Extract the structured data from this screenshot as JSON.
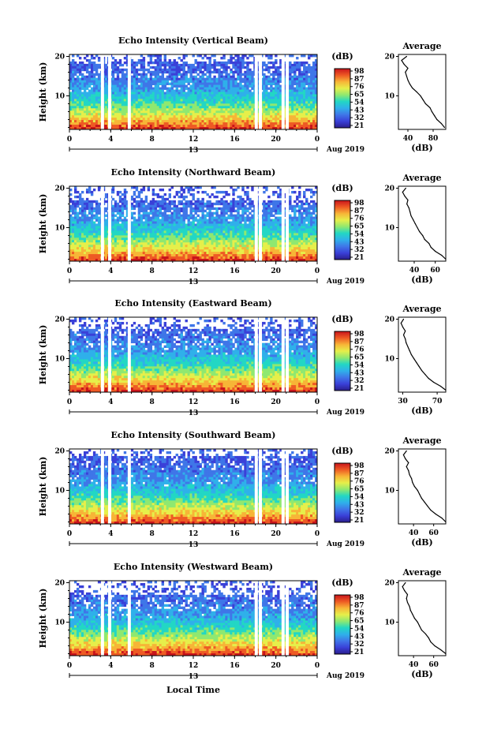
{
  "figure": {
    "xlabel": "Local Time",
    "date_label": "Aug 2019",
    "date_marker": "13",
    "ylabel": "Height (km)",
    "cbar_unit": "(dB)",
    "avg_title": "Average",
    "avg_unit": "(dB)",
    "colormap": [
      "#2a1e8c",
      "#3a40d8",
      "#3f76e8",
      "#2fb0ea",
      "#22d7c4",
      "#8fe870",
      "#e6ef4a",
      "#f7b537",
      "#ee5a24",
      "#c8141b"
    ]
  },
  "chart_data": [
    {
      "type": "heatmap",
      "title": "Echo Intensity (Vertical Beam)",
      "x_ticks": [
        "0",
        "4",
        "8",
        "12",
        "16",
        "20",
        "0"
      ],
      "xlim": [
        0,
        24
      ],
      "y_ticks": [
        "20",
        "10"
      ],
      "ylim": [
        1.5,
        20.5
      ],
      "colorbar_ticks": [
        "98",
        "87",
        "76",
        "65",
        "54",
        "43",
        "32",
        "21"
      ],
      "gaps_hours": [
        3.2,
        3.9,
        5.8,
        18.1,
        18.5,
        20.7,
        21.1
      ],
      "average_profile": {
        "x_ticks": [
          "40",
          "80"
        ],
        "xlim": [
          25,
          100
        ],
        "y_ticks": [
          "20",
          "10"
        ],
        "heights_km": [
          2,
          3,
          4,
          5,
          6,
          7,
          8,
          9,
          10,
          11,
          12,
          13,
          14,
          15,
          16,
          17,
          18,
          19,
          20
        ],
        "values_db": [
          98,
          93,
          86,
          82,
          78,
          75,
          68,
          64,
          60,
          54,
          47,
          43,
          40,
          38,
          36,
          40,
          34,
          30,
          38
        ]
      }
    },
    {
      "type": "heatmap",
      "title": "Echo Intensity (Northward Beam)",
      "x_ticks": [
        "0",
        "4",
        "8",
        "12",
        "16",
        "20",
        "0"
      ],
      "xlim": [
        0,
        24
      ],
      "y_ticks": [
        "20",
        "10"
      ],
      "ylim": [
        1.5,
        20.5
      ],
      "colorbar_ticks": [
        "98",
        "87",
        "76",
        "65",
        "54",
        "43",
        "32",
        "21"
      ],
      "gaps_hours": [
        3.2,
        3.9,
        5.8,
        18.1,
        18.5,
        20.7,
        21.1
      ],
      "average_profile": {
        "x_ticks": [
          "40",
          "60"
        ],
        "xlim": [
          25,
          70
        ],
        "y_ticks": [
          "20",
          "10"
        ],
        "heights_km": [
          2,
          3,
          4,
          5,
          6,
          7,
          8,
          9,
          10,
          11,
          12,
          13,
          14,
          15,
          16,
          17,
          18,
          19,
          20
        ],
        "values_db": [
          70,
          66,
          60,
          56,
          54,
          50,
          48,
          45,
          43,
          41,
          39,
          37,
          36,
          35,
          33,
          34,
          31,
          29,
          32
        ]
      }
    },
    {
      "type": "heatmap",
      "title": "Echo Intensity (Eastward Beam)",
      "x_ticks": [
        "0",
        "4",
        "8",
        "12",
        "16",
        "20",
        "0"
      ],
      "xlim": [
        0,
        24
      ],
      "y_ticks": [
        "20",
        "10"
      ],
      "ylim": [
        1.5,
        20.5
      ],
      "colorbar_ticks": [
        "98",
        "87",
        "76",
        "65",
        "54",
        "43",
        "32",
        "21"
      ],
      "gaps_hours": [
        3.2,
        3.9,
        5.8,
        18.1,
        18.5,
        20.7,
        21.1
      ],
      "average_profile": {
        "x_ticks": [
          "30",
          "70"
        ],
        "xlim": [
          25,
          80
        ],
        "y_ticks": [
          "20",
          "10"
        ],
        "heights_km": [
          2,
          3,
          4,
          5,
          6,
          7,
          8,
          9,
          10,
          11,
          12,
          13,
          14,
          15,
          16,
          17,
          18,
          19,
          20
        ],
        "values_db": [
          80,
          74,
          66,
          60,
          56,
          52,
          49,
          46,
          43,
          40,
          38,
          36,
          34,
          33,
          31,
          33,
          30,
          28,
          31
        ]
      }
    },
    {
      "type": "heatmap",
      "title": "Echo Intensity (Southward Beam)",
      "x_ticks": [
        "0",
        "4",
        "8",
        "12",
        "16",
        "20",
        "0"
      ],
      "xlim": [
        0,
        24
      ],
      "y_ticks": [
        "20",
        "10"
      ],
      "ylim": [
        1.5,
        20.5
      ],
      "colorbar_ticks": [
        "98",
        "87",
        "76",
        "65",
        "54",
        "43",
        "32",
        "21"
      ],
      "gaps_hours": [
        3.2,
        3.9,
        5.8,
        18.1,
        18.5,
        20.7,
        21.1
      ],
      "average_profile": {
        "x_ticks": [
          "40",
          "60"
        ],
        "xlim": [
          25,
          72
        ],
        "y_ticks": [
          "20",
          "10"
        ],
        "heights_km": [
          2,
          3,
          4,
          5,
          6,
          7,
          8,
          9,
          10,
          11,
          12,
          13,
          14,
          15,
          16,
          17,
          18,
          19,
          20
        ],
        "values_db": [
          72,
          68,
          62,
          57,
          54,
          51,
          48,
          46,
          44,
          41,
          39,
          38,
          36,
          35,
          33,
          35,
          32,
          30,
          33
        ]
      }
    },
    {
      "type": "heatmap",
      "title": "Echo Intensity (Westward Beam)",
      "x_ticks": [
        "0",
        "4",
        "8",
        "12",
        "16",
        "20",
        "0"
      ],
      "xlim": [
        0,
        24
      ],
      "y_ticks": [
        "20",
        "10"
      ],
      "ylim": [
        1.5,
        20.5
      ],
      "colorbar_ticks": [
        "98",
        "87",
        "76",
        "65",
        "54",
        "43",
        "32",
        "21"
      ],
      "gaps_hours": [
        3.2,
        3.9,
        5.8,
        18.1,
        18.5,
        20.7,
        21.1
      ],
      "average_profile": {
        "x_ticks": [
          "40",
          "60"
        ],
        "xlim": [
          25,
          72
        ],
        "y_ticks": [
          "20",
          "10"
        ],
        "heights_km": [
          2,
          3,
          4,
          5,
          6,
          7,
          8,
          9,
          10,
          11,
          12,
          13,
          14,
          15,
          16,
          17,
          18,
          19,
          20
        ],
        "values_db": [
          72,
          67,
          61,
          57,
          55,
          52,
          48,
          46,
          44,
          41,
          39,
          37,
          36,
          34,
          33,
          34,
          31,
          29,
          32
        ]
      }
    }
  ]
}
